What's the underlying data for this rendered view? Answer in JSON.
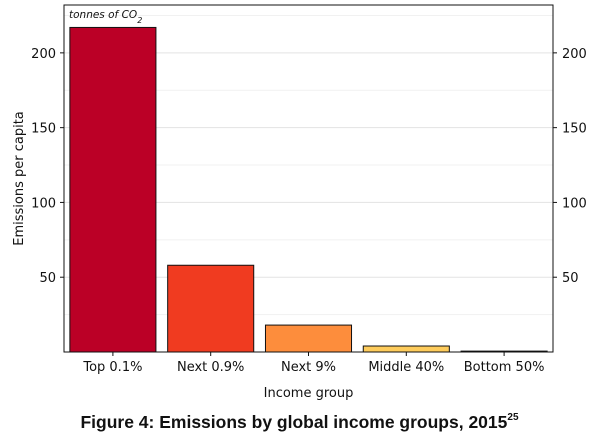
{
  "chart_data": {
    "type": "bar",
    "unit_label_main": "tonnes of CO",
    "unit_label_sub": "2",
    "xlabel": "Income group",
    "ylabel": "Emissions per capita",
    "categories": [
      "Top 0.1%",
      "Next 0.9%",
      "Next 9%",
      "Middle 40%",
      "Bottom 50%"
    ],
    "values": [
      217,
      58,
      18,
      4,
      0.6
    ],
    "colors": [
      "#bb0026",
      "#f03b20",
      "#fd8d3c",
      "#fecc5c",
      "#ffffb2"
    ],
    "bar_border": "#111111",
    "ylim": [
      0,
      232
    ],
    "yticks": [
      50,
      100,
      150,
      200
    ],
    "yticks_right": [
      50,
      100,
      150,
      200
    ],
    "grid": true
  },
  "caption": {
    "text": "Figure 4: Emissions by global income groups, 2015",
    "footnote": "25"
  }
}
